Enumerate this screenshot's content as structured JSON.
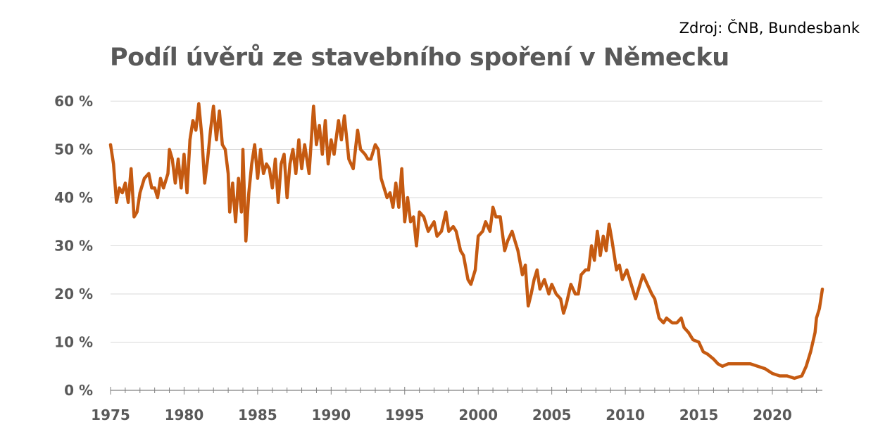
{
  "source": "Zdroj: ČNB, Bundesbank",
  "chart_data": {
    "type": "line",
    "title": "Podíl úvěrů ze stavebního spoření v Německu",
    "xlabel": "",
    "ylabel": "",
    "xlim": [
      1975,
      2023.4
    ],
    "ylim": [
      0,
      60
    ],
    "grid": true,
    "line_color": "#C55A11",
    "x_ticks": [
      "1975",
      "1980",
      "1985",
      "1990",
      "1995",
      "2000",
      "2005",
      "2010",
      "2015",
      "2020"
    ],
    "y_ticks": [
      "0 %",
      "10 %",
      "20 %",
      "30 %",
      "40 %",
      "50 %",
      "60 %"
    ],
    "series": [
      {
        "name": "Podíl úvěrů ze stavebního spoření",
        "points": [
          [
            1975.0,
            51
          ],
          [
            1975.2,
            47
          ],
          [
            1975.4,
            39
          ],
          [
            1975.6,
            42
          ],
          [
            1975.8,
            41
          ],
          [
            1976.0,
            43
          ],
          [
            1976.2,
            39
          ],
          [
            1976.4,
            46
          ],
          [
            1976.6,
            36
          ],
          [
            1976.8,
            37
          ],
          [
            1977.0,
            41
          ],
          [
            1977.3,
            44
          ],
          [
            1977.6,
            45
          ],
          [
            1977.8,
            42
          ],
          [
            1978.0,
            42
          ],
          [
            1978.2,
            40
          ],
          [
            1978.4,
            44
          ],
          [
            1978.6,
            42
          ],
          [
            1978.9,
            45
          ],
          [
            1979.0,
            50
          ],
          [
            1979.2,
            48
          ],
          [
            1979.4,
            43
          ],
          [
            1979.6,
            48
          ],
          [
            1979.8,
            42
          ],
          [
            1980.0,
            49
          ],
          [
            1980.2,
            41
          ],
          [
            1980.4,
            52
          ],
          [
            1980.6,
            56
          ],
          [
            1980.8,
            54
          ],
          [
            1981.0,
            59.5
          ],
          [
            1981.2,
            53
          ],
          [
            1981.4,
            43
          ],
          [
            1981.6,
            48
          ],
          [
            1981.8,
            54
          ],
          [
            1982.0,
            59
          ],
          [
            1982.2,
            52
          ],
          [
            1982.4,
            58
          ],
          [
            1982.6,
            51
          ],
          [
            1982.8,
            50
          ],
          [
            1983.0,
            45
          ],
          [
            1983.1,
            37
          ],
          [
            1983.3,
            43
          ],
          [
            1983.5,
            35
          ],
          [
            1983.7,
            44
          ],
          [
            1983.9,
            37
          ],
          [
            1984.0,
            50
          ],
          [
            1984.2,
            31
          ],
          [
            1984.4,
            41
          ],
          [
            1984.6,
            47
          ],
          [
            1984.8,
            51
          ],
          [
            1985.0,
            44
          ],
          [
            1985.2,
            50
          ],
          [
            1985.4,
            45
          ],
          [
            1985.6,
            47
          ],
          [
            1985.8,
            46
          ],
          [
            1986.0,
            42
          ],
          [
            1986.2,
            48
          ],
          [
            1986.4,
            39
          ],
          [
            1986.6,
            47
          ],
          [
            1986.8,
            49
          ],
          [
            1987.0,
            40
          ],
          [
            1987.2,
            47
          ],
          [
            1987.4,
            50
          ],
          [
            1987.6,
            45
          ],
          [
            1987.8,
            52
          ],
          [
            1988.0,
            46
          ],
          [
            1988.2,
            51
          ],
          [
            1988.5,
            45
          ],
          [
            1988.8,
            59
          ],
          [
            1989.0,
            51
          ],
          [
            1989.2,
            55
          ],
          [
            1989.4,
            49
          ],
          [
            1989.6,
            56
          ],
          [
            1989.8,
            47
          ],
          [
            1990.0,
            52
          ],
          [
            1990.2,
            49
          ],
          [
            1990.5,
            56
          ],
          [
            1990.7,
            52
          ],
          [
            1990.9,
            57
          ],
          [
            1991.2,
            48
          ],
          [
            1991.5,
            46
          ],
          [
            1991.8,
            54
          ],
          [
            1992.0,
            50
          ],
          [
            1992.3,
            49
          ],
          [
            1992.5,
            48
          ],
          [
            1992.7,
            48
          ],
          [
            1993.0,
            51
          ],
          [
            1993.2,
            50
          ],
          [
            1993.4,
            44
          ],
          [
            1993.6,
            42
          ],
          [
            1993.8,
            40
          ],
          [
            1994.0,
            41
          ],
          [
            1994.2,
            38
          ],
          [
            1994.4,
            43
          ],
          [
            1994.6,
            38
          ],
          [
            1994.8,
            46
          ],
          [
            1995.0,
            35
          ],
          [
            1995.2,
            40
          ],
          [
            1995.4,
            35
          ],
          [
            1995.6,
            36
          ],
          [
            1995.8,
            30
          ],
          [
            1996.0,
            37
          ],
          [
            1996.3,
            36
          ],
          [
            1996.6,
            33
          ],
          [
            1997.0,
            35
          ],
          [
            1997.2,
            32
          ],
          [
            1997.5,
            33
          ],
          [
            1997.8,
            37
          ],
          [
            1998.0,
            33
          ],
          [
            1998.3,
            34
          ],
          [
            1998.5,
            33
          ],
          [
            1998.8,
            29
          ],
          [
            1999.0,
            28
          ],
          [
            1999.3,
            23
          ],
          [
            1999.5,
            22
          ],
          [
            1999.8,
            25
          ],
          [
            2000.0,
            32
          ],
          [
            2000.3,
            33
          ],
          [
            2000.5,
            35
          ],
          [
            2000.8,
            33
          ],
          [
            2001.0,
            38
          ],
          [
            2001.2,
            36
          ],
          [
            2001.5,
            36
          ],
          [
            2001.8,
            29
          ],
          [
            2002.0,
            31
          ],
          [
            2002.3,
            33
          ],
          [
            2002.5,
            31
          ],
          [
            2002.7,
            29
          ],
          [
            2003.0,
            24
          ],
          [
            2003.2,
            26
          ],
          [
            2003.4,
            17.5
          ],
          [
            2003.6,
            20
          ],
          [
            2003.8,
            23
          ],
          [
            2004.0,
            25
          ],
          [
            2004.2,
            21
          ],
          [
            2004.5,
            23
          ],
          [
            2004.8,
            20
          ],
          [
            2005.0,
            22
          ],
          [
            2005.3,
            20
          ],
          [
            2005.6,
            19
          ],
          [
            2005.8,
            16
          ],
          [
            2006.0,
            18
          ],
          [
            2006.3,
            22
          ],
          [
            2006.6,
            20
          ],
          [
            2006.8,
            20
          ],
          [
            2007.0,
            24
          ],
          [
            2007.3,
            25
          ],
          [
            2007.5,
            25
          ],
          [
            2007.7,
            30
          ],
          [
            2007.9,
            27
          ],
          [
            2008.1,
            33
          ],
          [
            2008.3,
            28
          ],
          [
            2008.5,
            32
          ],
          [
            2008.7,
            29
          ],
          [
            2008.9,
            34.5
          ],
          [
            2009.1,
            31
          ],
          [
            2009.4,
            25
          ],
          [
            2009.6,
            26
          ],
          [
            2009.8,
            23
          ],
          [
            2010.1,
            25
          ],
          [
            2010.4,
            22
          ],
          [
            2010.7,
            19
          ],
          [
            2011.0,
            22
          ],
          [
            2011.2,
            24
          ],
          [
            2011.5,
            22
          ],
          [
            2011.8,
            20
          ],
          [
            2012.0,
            19
          ],
          [
            2012.3,
            15
          ],
          [
            2012.6,
            14
          ],
          [
            2012.8,
            15
          ],
          [
            2013.2,
            14
          ],
          [
            2013.5,
            14
          ],
          [
            2013.8,
            15
          ],
          [
            2014.0,
            13
          ],
          [
            2014.3,
            12
          ],
          [
            2014.6,
            10.5
          ],
          [
            2015.0,
            10
          ],
          [
            2015.3,
            8
          ],
          [
            2015.6,
            7.5
          ],
          [
            2016.0,
            6.5
          ],
          [
            2016.3,
            5.5
          ],
          [
            2016.6,
            5
          ],
          [
            2017.0,
            5.5
          ],
          [
            2017.5,
            5.5
          ],
          [
            2018.0,
            5.5
          ],
          [
            2018.5,
            5.5
          ],
          [
            2019.0,
            5
          ],
          [
            2019.5,
            4.5
          ],
          [
            2020.0,
            3.5
          ],
          [
            2020.5,
            3
          ],
          [
            2021.0,
            3
          ],
          [
            2021.5,
            2.5
          ],
          [
            2022.0,
            3
          ],
          [
            2022.3,
            5
          ],
          [
            2022.6,
            8
          ],
          [
            2022.9,
            12
          ],
          [
            2023.0,
            15
          ],
          [
            2023.2,
            17
          ],
          [
            2023.4,
            21
          ]
        ]
      }
    ]
  }
}
